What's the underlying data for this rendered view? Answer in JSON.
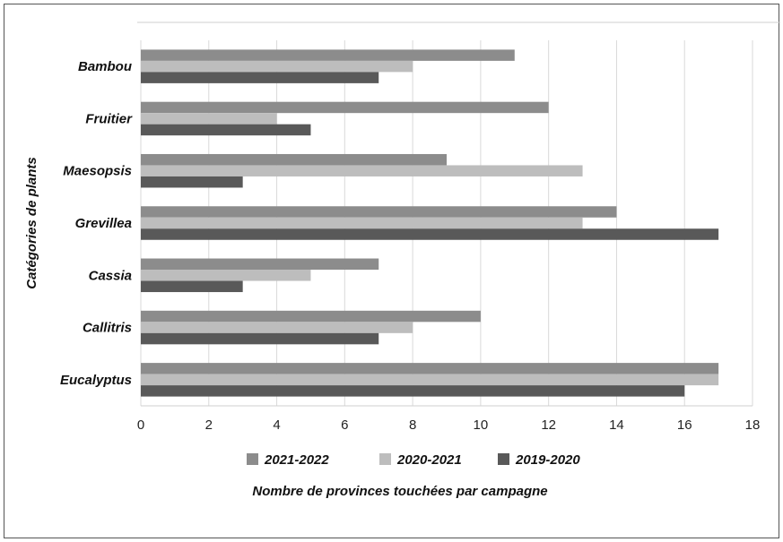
{
  "chart_data": {
    "type": "bar",
    "orientation": "horizontal",
    "categories": [
      "Bambou",
      "Fruitier",
      "Maesopsis",
      "Grevillea",
      "Cassia",
      "Callitris",
      "Eucalyptus"
    ],
    "series": [
      {
        "name": "2021-2022",
        "color": "#8c8c8c",
        "values": [
          11,
          12,
          9,
          14,
          7,
          10,
          17
        ]
      },
      {
        "name": "2020-2021",
        "color": "#bdbdbd",
        "values": [
          8,
          4,
          13,
          13,
          5,
          8,
          17
        ]
      },
      {
        "name": "2019-2020",
        "color": "#595959",
        "values": [
          7,
          5,
          3,
          17,
          3,
          7,
          16
        ]
      }
    ],
    "xlabel": "Nombre de provinces touchées par campagne",
    "ylabel": "Catégories de plants",
    "xlim": [
      0,
      18
    ],
    "xticks": [
      "0",
      "2",
      "4",
      "6",
      "8",
      "10",
      "12",
      "14",
      "16",
      "18"
    ],
    "grid": true,
    "legend_position": "bottom"
  }
}
